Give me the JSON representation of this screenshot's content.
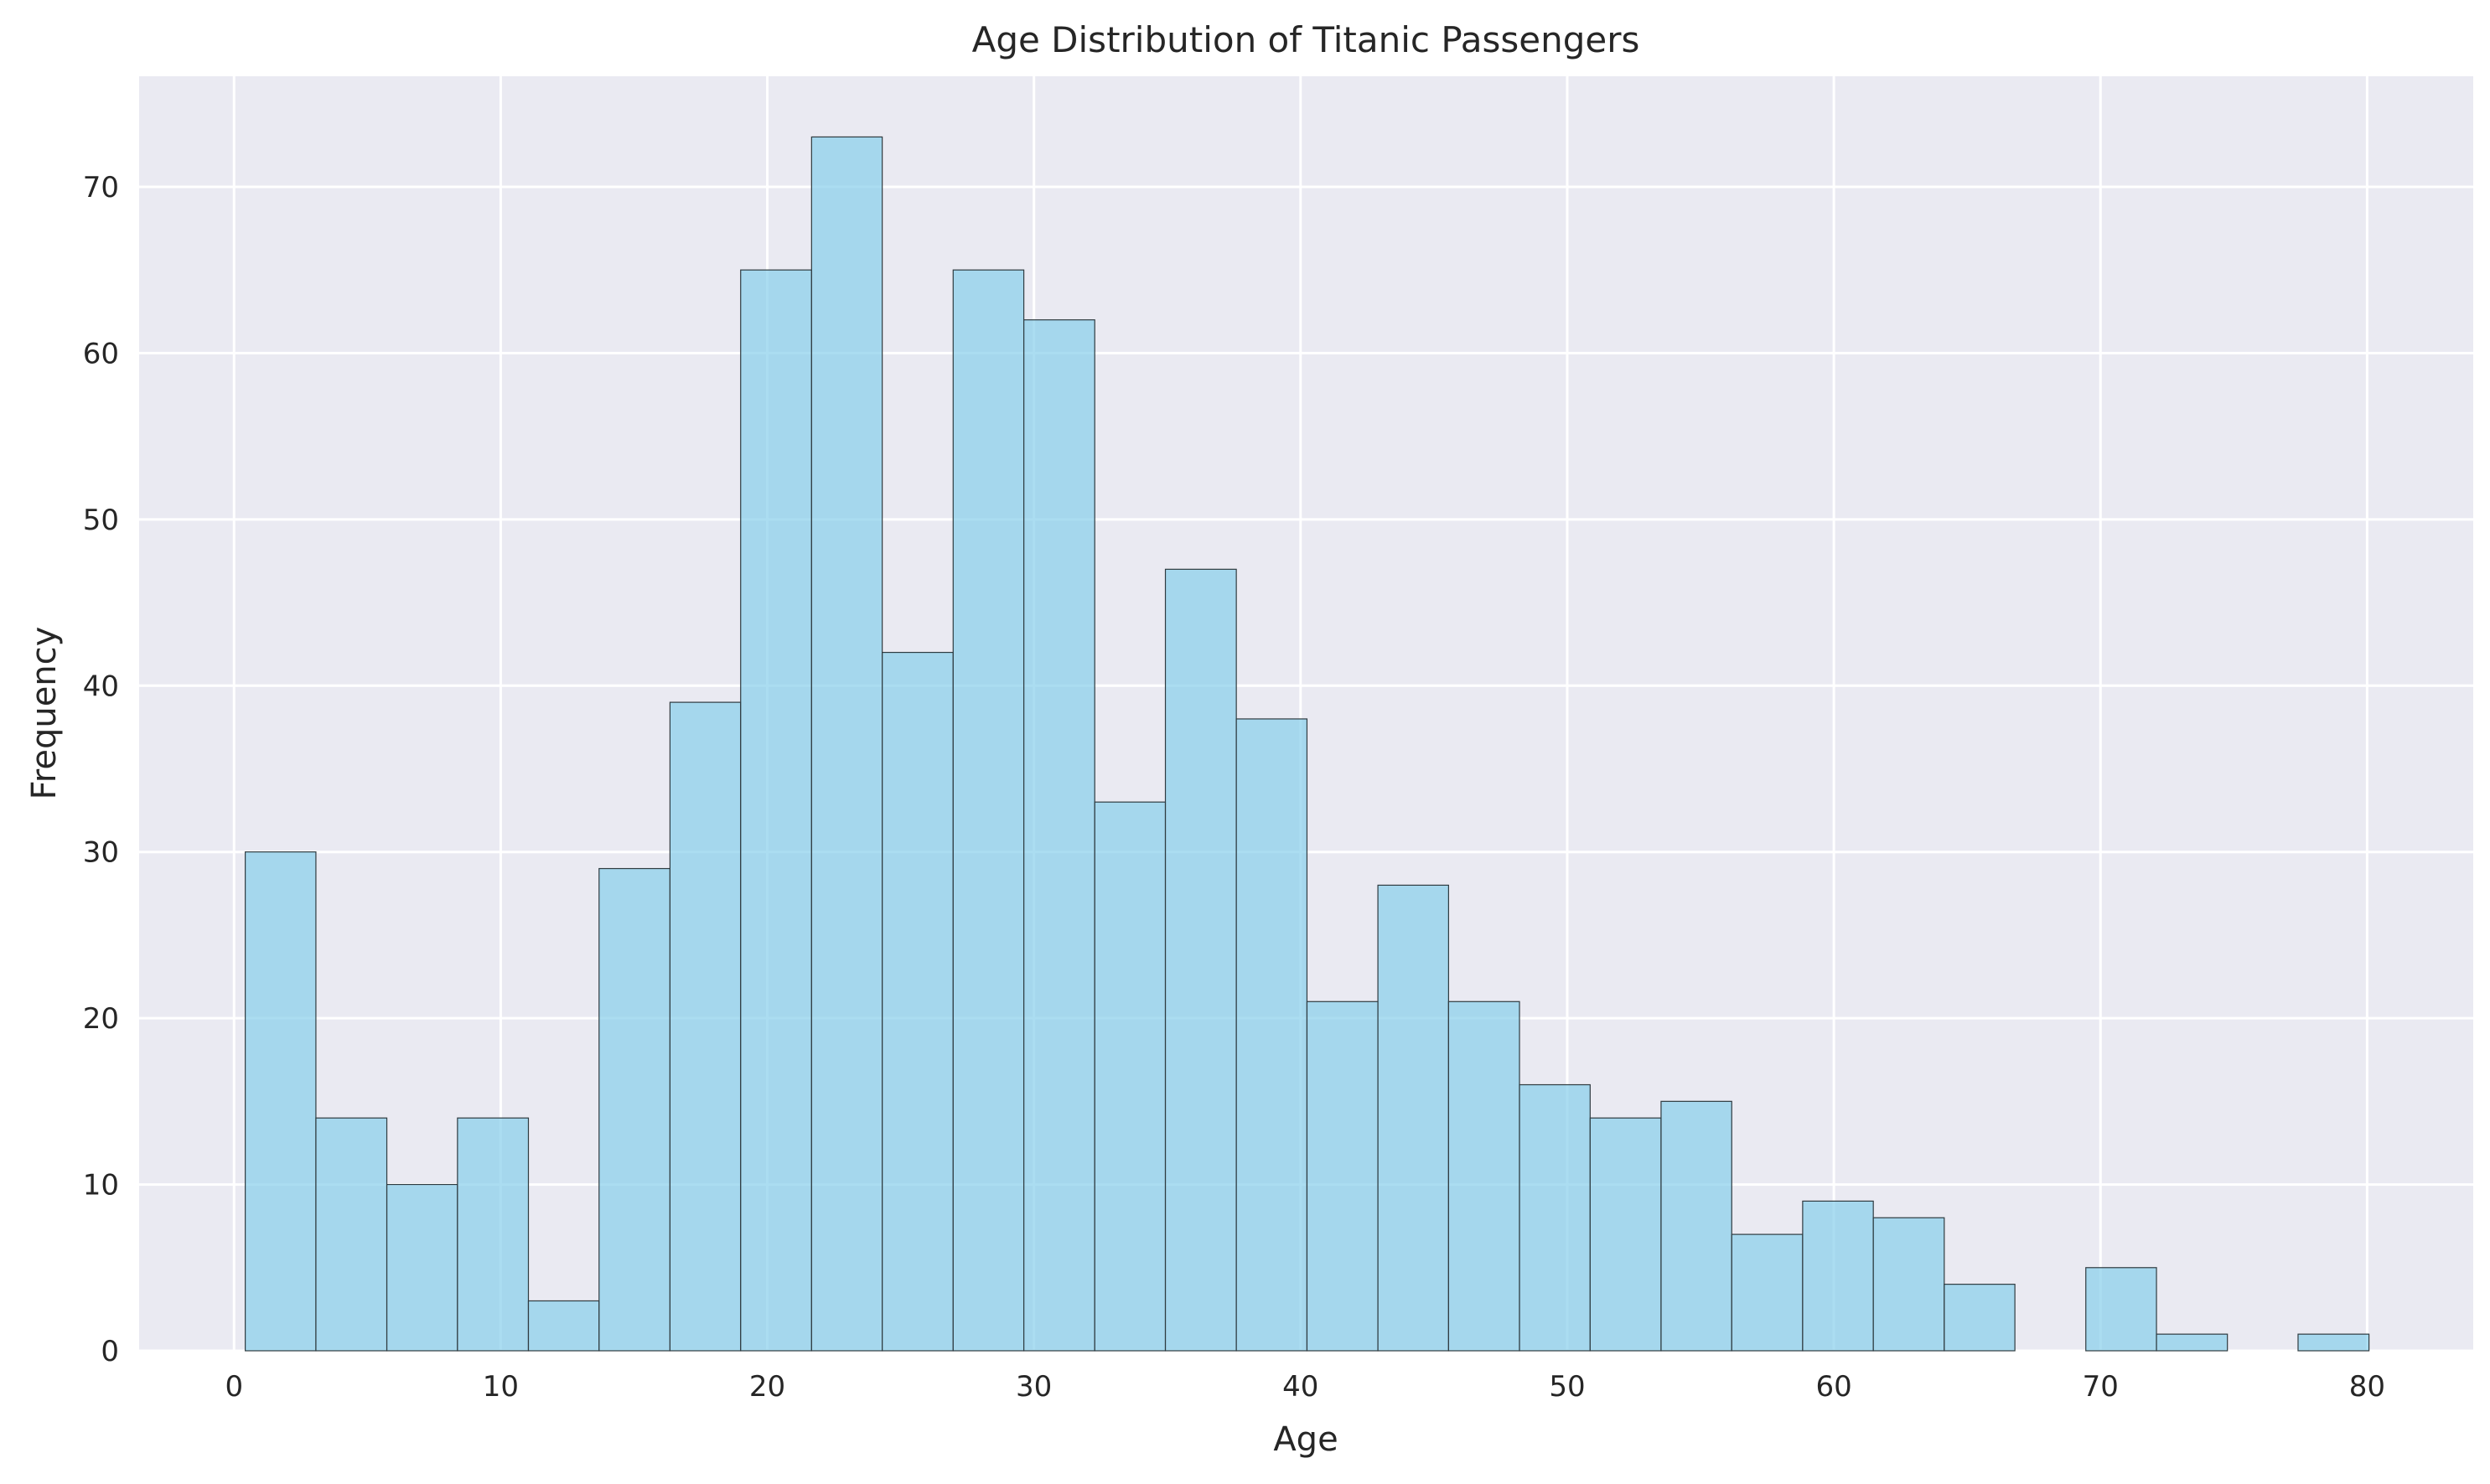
{
  "chart_data": {
    "type": "bar",
    "title": "Age Distribution of Titanic Passengers",
    "xlabel": "Age",
    "ylabel": "Frequency",
    "xlim": [
      -3.56,
      83.98
    ],
    "ylim": [
      0,
      76.65
    ],
    "xticks": [
      0,
      10,
      20,
      30,
      40,
      50,
      60,
      70,
      80
    ],
    "yticks": [
      0,
      10,
      20,
      30,
      40,
      50,
      60,
      70
    ],
    "grid": true,
    "bin_edges": [
      0.42,
      3.07,
      5.73,
      8.38,
      11.04,
      13.69,
      16.35,
      19.0,
      21.66,
      24.31,
      26.97,
      29.62,
      32.28,
      34.93,
      37.59,
      40.24,
      42.9,
      45.55,
      48.21,
      50.86,
      53.52,
      56.17,
      58.83,
      61.48,
      64.14,
      66.79,
      69.45,
      72.1,
      74.76,
      77.41,
      80.07
    ],
    "values": [
      30,
      14,
      10,
      14,
      3,
      29,
      39,
      65,
      73,
      42,
      65,
      62,
      33,
      47,
      38,
      21,
      28,
      21,
      16,
      14,
      15,
      7,
      9,
      8,
      4,
      0,
      5,
      1,
      0,
      1
    ],
    "colors": {
      "bar_fill": "#87ceeb",
      "bar_edge": "#2f3b40",
      "plot_bg": "#eaeaf2",
      "grid": "#ffffff",
      "text": "#262626"
    }
  }
}
